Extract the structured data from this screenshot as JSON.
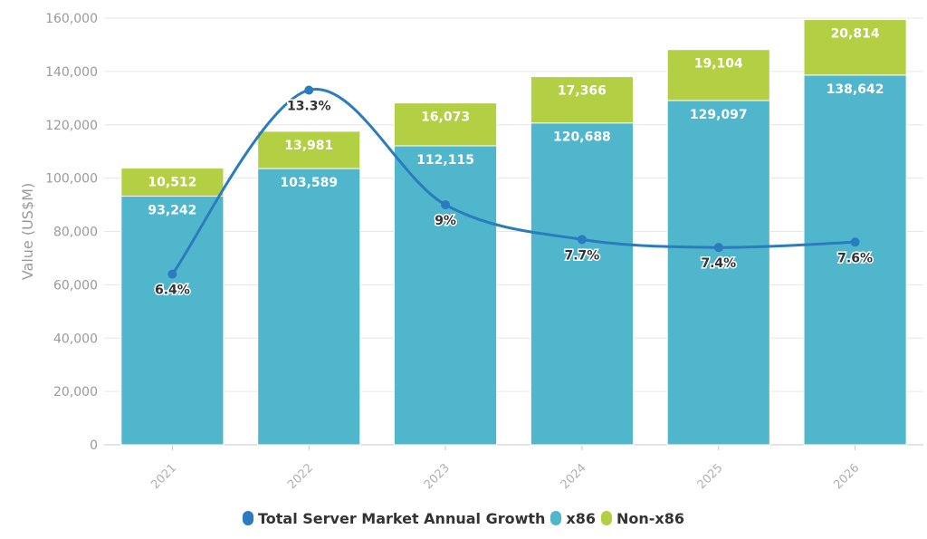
{
  "chart_data": {
    "type": "bar",
    "stacked": true,
    "categories": [
      "2021",
      "2022",
      "2023",
      "2024",
      "2025",
      "2026"
    ],
    "series": [
      {
        "name": "x86",
        "type": "bar",
        "color": "#4fb6cc",
        "values": [
          93242,
          103589,
          112115,
          120688,
          129097,
          138642
        ],
        "labels": [
          "93,242",
          "103,589",
          "112,115",
          "120,688",
          "129,097",
          "138,642"
        ]
      },
      {
        "name": "Non-x86",
        "type": "bar",
        "color": "#b3cf44",
        "values": [
          10512,
          13981,
          16073,
          17366,
          19104,
          20814
        ],
        "labels": [
          "10,512",
          "13,981",
          "16,073",
          "17,366",
          "19,104",
          "20,814"
        ]
      },
      {
        "name": "Total Server Market Annual Growth",
        "type": "line",
        "color": "#2b7bbf",
        "values": [
          6.4,
          13.3,
          9,
          7.7,
          7.4,
          7.6
        ],
        "labels": [
          "6.4%",
          "13.3%",
          "9%",
          "7.7%",
          "7.4%",
          "7.6%"
        ]
      }
    ],
    "ylabel": "Value (US$M)",
    "ylim": [
      0,
      160000
    ],
    "yticks": [
      0,
      20000,
      40000,
      60000,
      80000,
      100000,
      120000,
      140000,
      160000
    ],
    "ytick_labels": [
      "0",
      "20,000",
      "40,000",
      "60,000",
      "80,000",
      "100,000",
      "120,000",
      "140,000",
      "160,000"
    ],
    "grid": true,
    "legend_position": "bottom-center"
  }
}
